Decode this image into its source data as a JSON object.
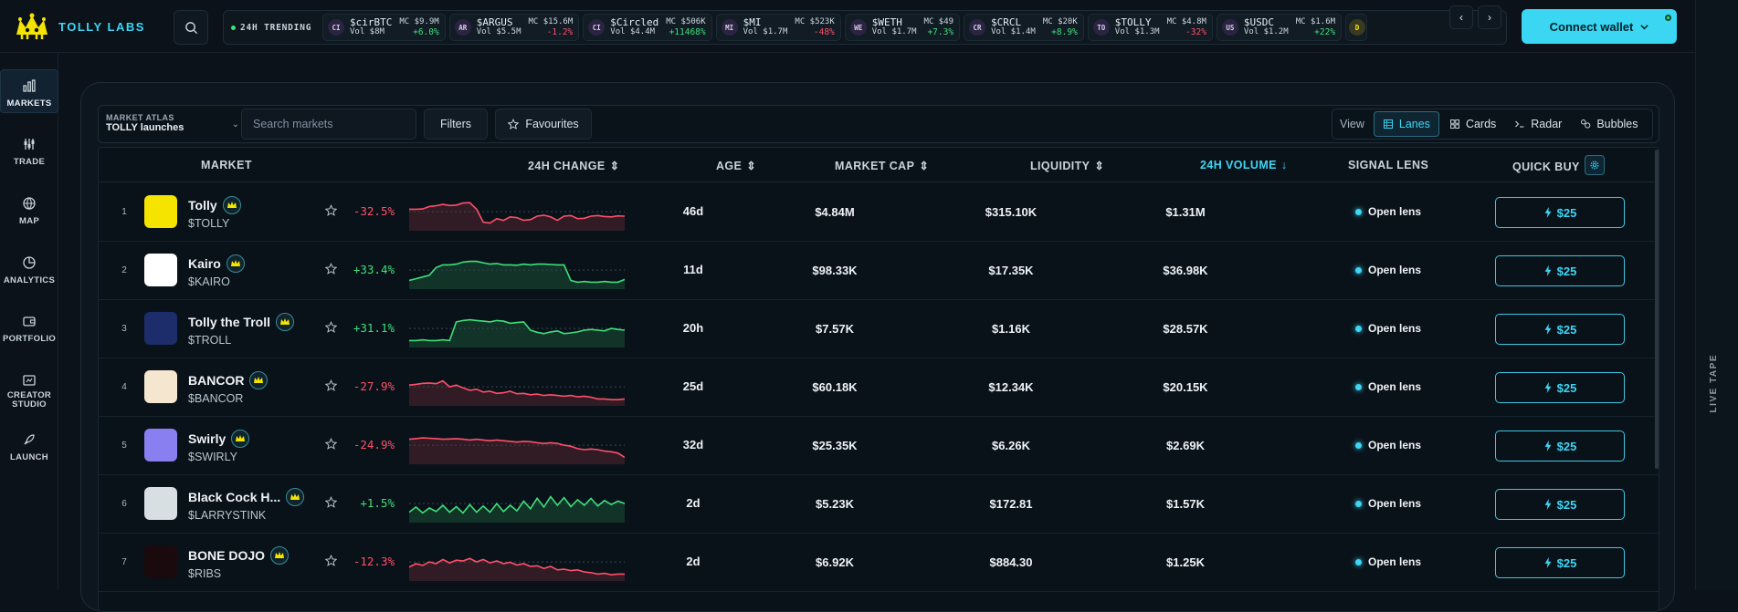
{
  "brand": {
    "name": "TOLLY LABS"
  },
  "ticker": {
    "label": "24H TRENDING",
    "items": [
      {
        "icon": "CI",
        "symbol": "$cirBTC",
        "mc": "MC $9.9M",
        "vol": "Vol $8M",
        "change": "+6.0%",
        "dir": "pos"
      },
      {
        "icon": "AR",
        "symbol": "$ARGUS",
        "mc": "MC $15.6M",
        "vol": "Vol $5.5M",
        "change": "-1.2%",
        "dir": "neg"
      },
      {
        "icon": "CI",
        "symbol": "$Circled",
        "mc": "MC $506K",
        "vol": "Vol $4.4M",
        "change": "+11468%",
        "dir": "pos"
      },
      {
        "icon": "MI",
        "symbol": "$MI",
        "mc": "MC $523K",
        "vol": "Vol $1.7M",
        "change": "-48%",
        "dir": "neg"
      },
      {
        "icon": "WE",
        "symbol": "$WETH",
        "mc": "MC $49",
        "vol": "Vol $1.7M",
        "change": "+7.3%",
        "dir": "pos"
      },
      {
        "icon": "CR",
        "symbol": "$CRCL",
        "mc": "MC $20K",
        "vol": "Vol $1.4M",
        "change": "+8.9%",
        "dir": "pos"
      },
      {
        "icon": "TO",
        "symbol": "$TOLLY",
        "mc": "MC $4.8M",
        "vol": "Vol $1.3M",
        "change": "-32%",
        "dir": "neg"
      },
      {
        "icon": "US",
        "symbol": "$USDC",
        "mc": "MC $1.6M",
        "vol": "Vol $1.2M",
        "change": "+22%",
        "dir": "pos"
      }
    ],
    "partial_icon": "D"
  },
  "header": {
    "connect_label": "Connect wallet"
  },
  "sidebar": {
    "items": [
      {
        "label": "MARKETS",
        "icon": "bar-chart-icon"
      },
      {
        "label": "TRADE",
        "icon": "sliders-icon"
      },
      {
        "label": "MAP",
        "icon": "globe-icon"
      },
      {
        "label": "ANALYTICS",
        "icon": "pie-chart-icon"
      },
      {
        "label": "PORTFOLIO",
        "icon": "wallet-icon"
      },
      {
        "label": "CREATOR",
        "label2": "STUDIO",
        "icon": "studio-icon"
      },
      {
        "label": "LAUNCH",
        "icon": "rocket-icon"
      }
    ]
  },
  "rail": {
    "label": "LIVE TAPE"
  },
  "toolbar": {
    "atlas_title": "MARKET ATLAS",
    "atlas_value": "TOLLY launches",
    "search_placeholder": "Search markets",
    "filters_label": "Filters",
    "favourites_label": "Favourites",
    "view_label": "View",
    "views": [
      "Lanes",
      "Cards",
      "Radar",
      "Bubbles"
    ],
    "active_view": "Lanes"
  },
  "table": {
    "headers": {
      "market": "MARKET",
      "change": "24H CHANGE",
      "age": "AGE",
      "mcap": "MARKET CAP",
      "liquidity": "LIQUIDITY",
      "volume": "24H VOLUME",
      "signal": "SIGNAL LENS",
      "buy": "QUICK BUY"
    },
    "lens_label": "Open lens",
    "buy_label": "$25",
    "rows": [
      {
        "rank": "1",
        "name": "Tolly",
        "symbol": "$TOLLY",
        "change": "-32.5%",
        "dir": "neg",
        "age": "46d",
        "mcap": "$4.84M",
        "liquidity": "$315.10K",
        "volume": "$1.31M",
        "avatar": "#f5e400",
        "spark": [
          0.62,
          0.62,
          0.63,
          0.7,
          0.72,
          0.76,
          0.73,
          0.74,
          0.8,
          0.81,
          0.62,
          0.25,
          0.22,
          0.35,
          0.3,
          0.4,
          0.38,
          0.3,
          0.32,
          0.42,
          0.45,
          0.4,
          0.3,
          0.42,
          0.44,
          0.35,
          0.36,
          0.42,
          0.44,
          0.41,
          0.4,
          0.43,
          0.42
        ]
      },
      {
        "rank": "2",
        "name": "Kairo",
        "symbol": "$KAIRO",
        "change": "+33.4%",
        "dir": "pos",
        "age": "11d",
        "mcap": "$98.33K",
        "liquidity": "$17.35K",
        "volume": "$36.98K",
        "avatar": "#ffffff",
        "spark": [
          0.25,
          0.3,
          0.35,
          0.4,
          0.62,
          0.7,
          0.7,
          0.72,
          0.78,
          0.8,
          0.8,
          0.76,
          0.72,
          0.74,
          0.7,
          0.7,
          0.69,
          0.72,
          0.7,
          0.72,
          0.72,
          0.71,
          0.7,
          0.7,
          0.25,
          0.2,
          0.22,
          0.2,
          0.2,
          0.22,
          0.2,
          0.2,
          0.28
        ]
      },
      {
        "rank": "3",
        "name": "Tolly the Troll",
        "symbol": "$TROLL",
        "change": "+31.1%",
        "dir": "pos",
        "age": "20h",
        "mcap": "$7.57K",
        "liquidity": "$1.16K",
        "volume": "$28.57K",
        "avatar": "#1d2d6b",
        "spark": [
          0.2,
          0.2,
          0.22,
          0.2,
          0.2,
          0.22,
          0.2,
          0.74,
          0.78,
          0.8,
          0.78,
          0.76,
          0.74,
          0.78,
          0.76,
          0.7,
          0.72,
          0.74,
          0.5,
          0.44,
          0.4,
          0.45,
          0.48,
          0.4,
          0.42,
          0.45,
          0.5,
          0.52,
          0.5,
          0.48,
          0.55,
          0.52,
          0.5
        ]
      },
      {
        "rank": "4",
        "name": "BANCOR",
        "symbol": "$BANCOR",
        "change": "-27.9%",
        "dir": "neg",
        "age": "25d",
        "mcap": "$60.18K",
        "liquidity": "$12.34K",
        "volume": "$20.15K",
        "avatar": "#f4e6cf",
        "spark": [
          0.6,
          0.62,
          0.65,
          0.66,
          0.64,
          0.72,
          0.55,
          0.6,
          0.52,
          0.45,
          0.48,
          0.4,
          0.42,
          0.36,
          0.38,
          0.42,
          0.35,
          0.36,
          0.32,
          0.34,
          0.3,
          0.32,
          0.3,
          0.28,
          0.3,
          0.26,
          0.28,
          0.25,
          0.2,
          0.2,
          0.18,
          0.18,
          0.2
        ]
      },
      {
        "rank": "5",
        "name": "Swirly",
        "symbol": "$SWIRLY",
        "change": "-24.9%",
        "dir": "neg",
        "age": "32d",
        "mcap": "$25.35K",
        "liquidity": "$6.26K",
        "volume": "$2.69K",
        "avatar": "#8a7ff0",
        "spark": [
          0.72,
          0.74,
          0.76,
          0.75,
          0.74,
          0.72,
          0.73,
          0.74,
          0.72,
          0.7,
          0.72,
          0.7,
          0.68,
          0.7,
          0.68,
          0.66,
          0.64,
          0.66,
          0.65,
          0.62,
          0.6,
          0.62,
          0.6,
          0.55,
          0.52,
          0.45,
          0.42,
          0.44,
          0.42,
          0.38,
          0.36,
          0.32,
          0.2
        ]
      },
      {
        "rank": "6",
        "name": "Black Cock H...",
        "symbol": "$LARRYSTINK",
        "change": "+1.5%",
        "dir": "pos",
        "age": "2d",
        "mcap": "$5.23K",
        "liquidity": "$172.81",
        "volume": "$1.57K",
        "avatar": "#d8dfe3",
        "spark": [
          0.3,
          0.45,
          0.28,
          0.42,
          0.32,
          0.5,
          0.3,
          0.46,
          0.28,
          0.52,
          0.3,
          0.48,
          0.3,
          0.55,
          0.32,
          0.5,
          0.34,
          0.62,
          0.4,
          0.7,
          0.45,
          0.75,
          0.5,
          0.72,
          0.46,
          0.66,
          0.5,
          0.7,
          0.48,
          0.64,
          0.52,
          0.62,
          0.55
        ]
      },
      {
        "rank": "7",
        "name": "BONE DOJO",
        "symbol": "$RIBS",
        "change": "-12.3%",
        "dir": "neg",
        "age": "2d",
        "mcap": "$6.92K",
        "liquidity": "$884.30",
        "volume": "$1.25K",
        "avatar": "#1a0a0d",
        "spark": [
          0.4,
          0.5,
          0.45,
          0.55,
          0.5,
          0.62,
          0.52,
          0.6,
          0.58,
          0.65,
          0.55,
          0.62,
          0.52,
          0.58,
          0.5,
          0.54,
          0.46,
          0.5,
          0.42,
          0.44,
          0.36,
          0.42,
          0.32,
          0.34,
          0.3,
          0.32,
          0.26,
          0.24,
          0.2,
          0.22,
          0.18,
          0.2,
          0.2
        ]
      }
    ]
  },
  "colors": {
    "accent": "#3dd6f5",
    "positive": "#3ee07a",
    "negative": "#ff4f6a",
    "background": "#0b1219"
  }
}
